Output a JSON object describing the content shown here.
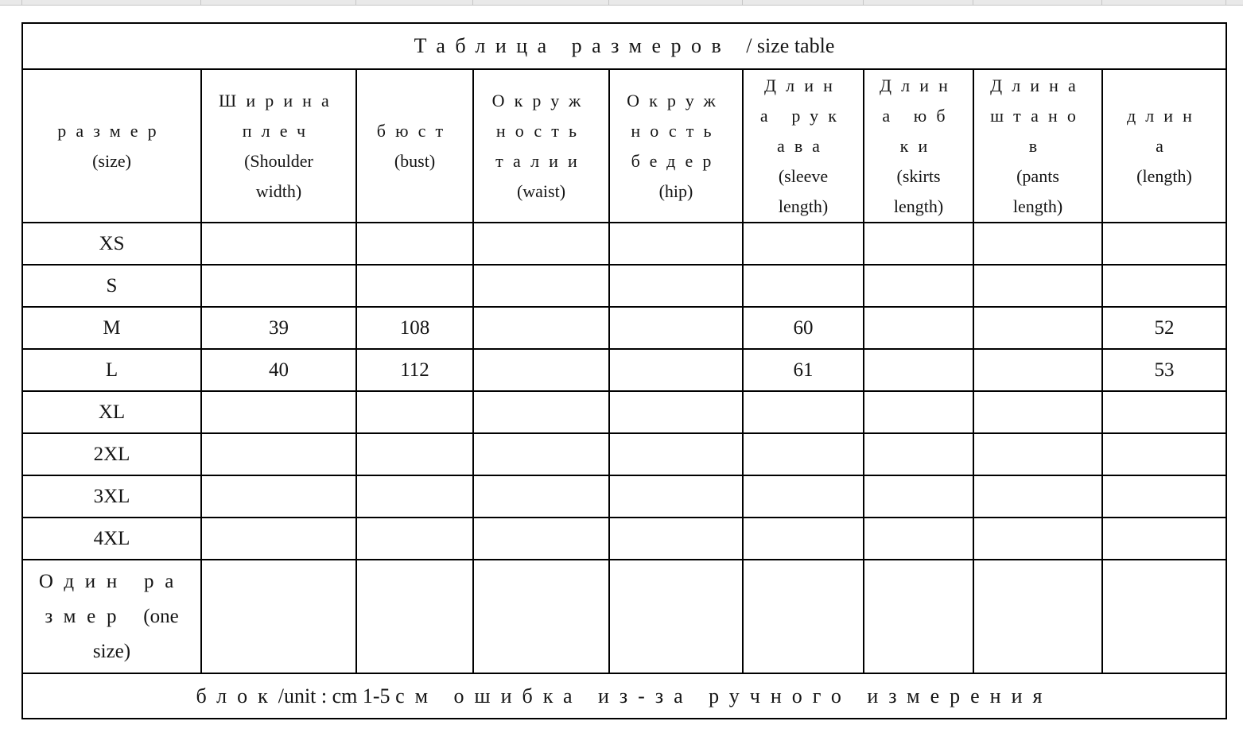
{
  "colors": {
    "background": "#ffffff",
    "text": "#151515",
    "table_border": "#000000",
    "strip_fill": "#e9e9e9",
    "strip_line": "#c6c6c6"
  },
  "strip": {
    "description": "partial spreadsheet grid row visible at top edge"
  },
  "table": {
    "title": "Таблица размеров / size table",
    "columns": [
      {
        "id": "size",
        "label": "размер\n(size)"
      },
      {
        "id": "shoulder_width",
        "label": "Ширина\nплеч\n(Shoulder\nwidth)"
      },
      {
        "id": "bust",
        "label": "бюст\n(bust)"
      },
      {
        "id": "waist",
        "label": "Окруж\nность\nталии\n(waist)"
      },
      {
        "id": "hip",
        "label": "Окруж\nность\nбедер\n(hip)"
      },
      {
        "id": "sleeve_length",
        "label": "Длин\nа рук\nава\n(sleeve\nlength)"
      },
      {
        "id": "skirts_length",
        "label": "Длин\nа юб\nки\n(skirts\nlength)"
      },
      {
        "id": "pants_length",
        "label": "Длина\nштано\nв\n(pants\nlength)"
      },
      {
        "id": "length",
        "label": "длин\nа\n(length)"
      }
    ],
    "rows": [
      {
        "label": "XS",
        "values": [
          "",
          "",
          "",
          "",
          "",
          "",
          "",
          ""
        ]
      },
      {
        "label": "S",
        "values": [
          "",
          "",
          "",
          "",
          "",
          "",
          "",
          ""
        ]
      },
      {
        "label": "M",
        "values": [
          "39",
          "108",
          "",
          "",
          "60",
          "",
          "",
          "52"
        ]
      },
      {
        "label": "L",
        "values": [
          "40",
          "112",
          "",
          "",
          "61",
          "",
          "",
          "53"
        ]
      },
      {
        "label": "XL",
        "values": [
          "",
          "",
          "",
          "",
          "",
          "",
          "",
          ""
        ]
      },
      {
        "label": "2XL",
        "values": [
          "",
          "",
          "",
          "",
          "",
          "",
          "",
          ""
        ]
      },
      {
        "label": "3XL",
        "values": [
          "",
          "",
          "",
          "",
          "",
          "",
          "",
          ""
        ]
      },
      {
        "label": "4XL",
        "values": [
          "",
          "",
          "",
          "",
          "",
          "",
          "",
          ""
        ]
      },
      {
        "label": "Один ра\nзмер (one\nsize)",
        "values": [
          "",
          "",
          "",
          "",
          "",
          "",
          "",
          ""
        ]
      }
    ],
    "footer": "блок/unit : cm  1-5 см ошибка из-за ручного измерения"
  }
}
